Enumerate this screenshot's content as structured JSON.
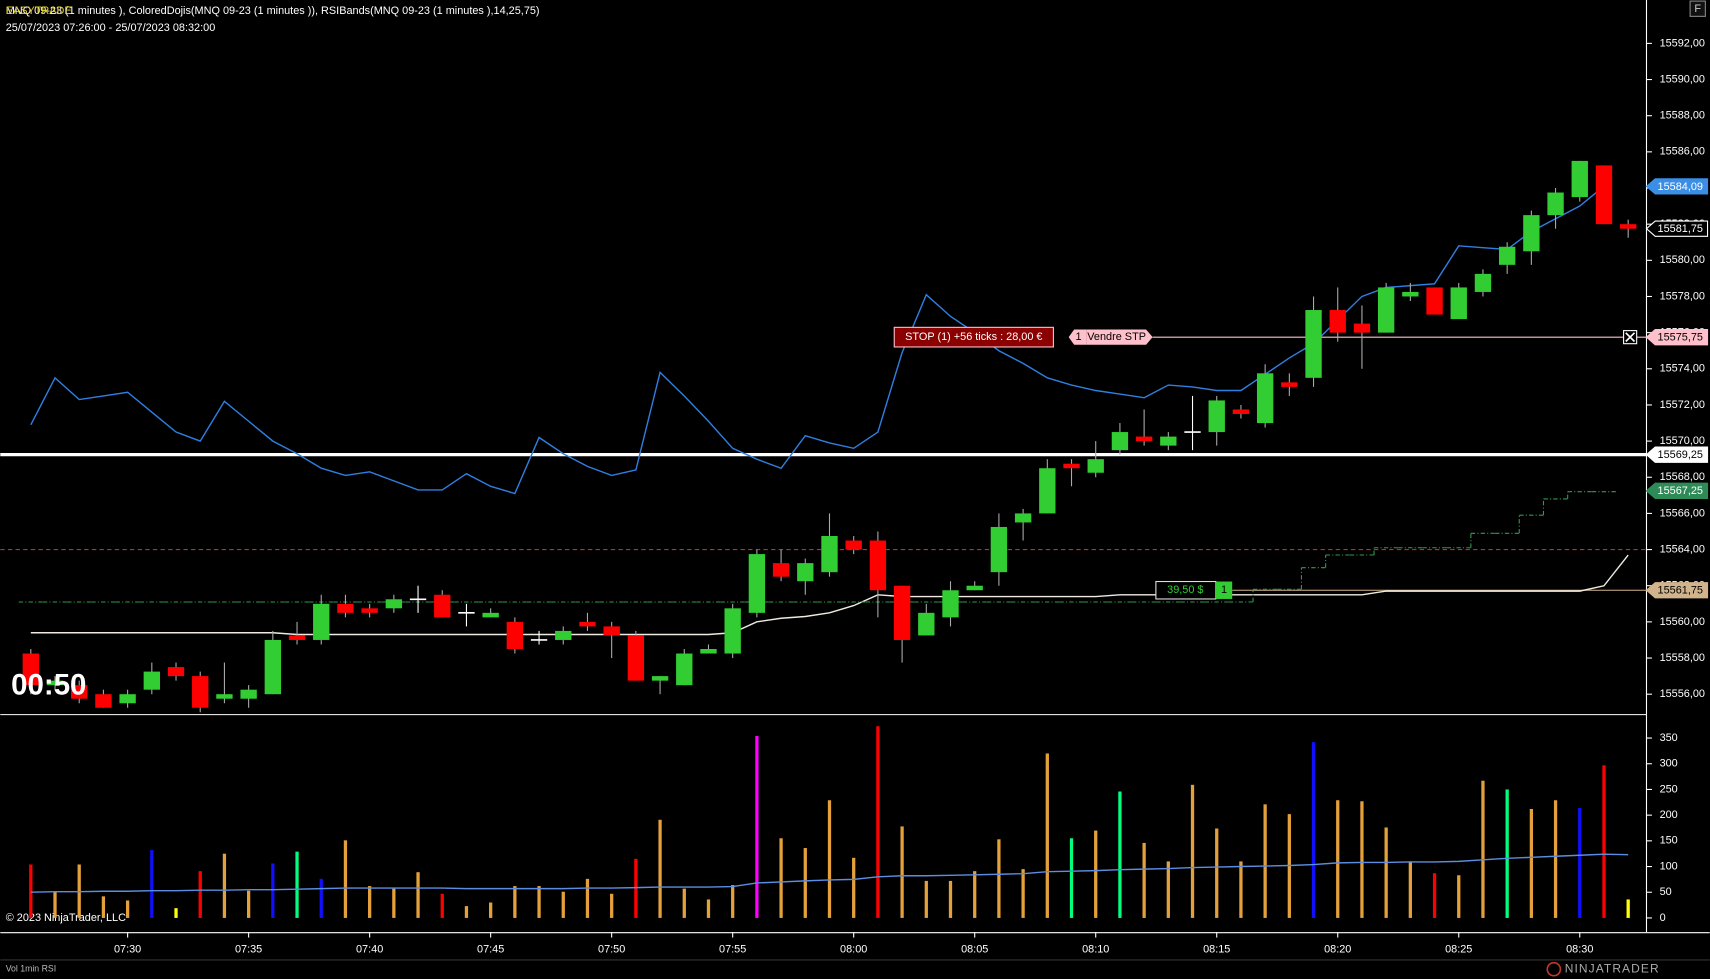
{
  "header": {
    "overlay_title": "EASYTRADE",
    "title": "MNQ 09-23 (1 minutes ), ColoredDojis(MNQ 09-23 (1 minutes )), RSIBands(MNQ 09-23 (1 minutes ),14,25,75)",
    "date_range": "25/07/2023 07:26:00 - 25/07/2023 08:32:00",
    "button": "F",
    "timer": "00:50"
  },
  "orders": {
    "stop_label": "STOP (1) +56 ticks : 28,00 €",
    "stop_qty": "1",
    "stop_action": "Vendre STP",
    "pnl_label": "39,50 $",
    "pnl_qty": "1"
  },
  "footer": {
    "copyright": "© 2023 NinjaTrader, LLC",
    "indicators": "Vol 1min RSI",
    "logo": "NINJATRADER"
  },
  "chart_data": [
    {
      "type": "candlestick",
      "categories": [
        null,
        null,
        null,
        null,
        "07:30",
        null,
        null,
        null,
        null,
        "07:35",
        null,
        null,
        null,
        null,
        "07:40",
        null,
        null,
        null,
        null,
        "07:45",
        null,
        null,
        null,
        null,
        "07:50",
        null,
        null,
        null,
        null,
        "07:55",
        null,
        null,
        null,
        null,
        "08:00",
        null,
        null,
        null,
        null,
        "08:05",
        null,
        null,
        null,
        null,
        "08:10",
        null,
        null,
        null,
        null,
        "08:15",
        null,
        null,
        null,
        null,
        "08:20",
        null,
        null,
        null,
        null,
        "08:25",
        null,
        null,
        null,
        null,
        "08:30",
        null,
        null
      ],
      "open": [
        15558.25,
        15556.5,
        15556.5,
        15556,
        15555.5,
        15556.25,
        15557.5,
        15557,
        15555.75,
        15555.75,
        15556,
        15559.25,
        15559,
        15561,
        15560.75,
        15560.75,
        15561.25,
        15561.5,
        15560.5,
        15560.25,
        15560,
        15559,
        15559,
        15560,
        15559.75,
        15559.25,
        15556.75,
        15556.5,
        15558.25,
        15558.25,
        15560.5,
        15563.25,
        15562.25,
        15562.75,
        15564.5,
        15564.5,
        15562,
        15559.25,
        15560.25,
        15561.75,
        15562.75,
        15565.5,
        15566,
        15568.75,
        15568.25,
        15569.5,
        15570.25,
        15569.75,
        15570.5,
        15570.5,
        15571.75,
        15571,
        15573.25,
        15573.5,
        15577.25,
        15576.5,
        15576,
        15578,
        15578.5,
        15576.75,
        15578.25,
        15579.75,
        15580.5,
        15582.5,
        15583.5,
        15585.25,
        15582
      ],
      "high": [
        15558.5,
        15557,
        15556.75,
        15556.25,
        15556.25,
        15557.75,
        15557.75,
        15557.25,
        15557.75,
        15556.5,
        15559.5,
        15560,
        15561.5,
        15561.5,
        15561,
        15561.5,
        15562,
        15561.75,
        15561,
        15560.75,
        15560.25,
        15559.5,
        15559.75,
        15560.5,
        15560,
        15559.5,
        15557,
        15558.5,
        15558.75,
        15561,
        15564,
        15564,
        15563.5,
        15566,
        15564.75,
        15565,
        15562,
        15561,
        15562.25,
        15562.25,
        15566,
        15566.25,
        15569,
        15569,
        15570,
        15571,
        15571.75,
        15570.5,
        15572.5,
        15572.5,
        15572,
        15574.25,
        15573.75,
        15578,
        15578.5,
        15577.5,
        15578.75,
        15578.75,
        15578.5,
        15578.75,
        15579.5,
        15581,
        15582.75,
        15584,
        15585.5,
        15585.25,
        15582.25
      ],
      "low": [
        15556,
        15556.25,
        15555.5,
        15555.25,
        15555.25,
        15556,
        15556.75,
        15555,
        15555.5,
        15555.25,
        15556,
        15558.75,
        15558.75,
        15560.25,
        15560.25,
        15560.5,
        15560.5,
        15560.25,
        15559.75,
        15560.25,
        15558.25,
        15558.75,
        15558.75,
        15559.5,
        15558,
        15556.75,
        15556,
        15556.5,
        15558.25,
        15558,
        15560.25,
        15562.25,
        15561.5,
        15562.5,
        15563.75,
        15560.25,
        15557.75,
        15559.25,
        15559.75,
        15561.75,
        15562,
        15564.5,
        15566,
        15567.5,
        15568,
        15569.25,
        15569.75,
        15569.5,
        15569.5,
        15569.75,
        15571.25,
        15570.75,
        15572.5,
        15573,
        15575.5,
        15574,
        15576,
        15577.75,
        15577,
        15576.75,
        15578,
        15579.25,
        15579.75,
        15581.75,
        15583.25,
        15582,
        15581.25
      ],
      "close": [
        15556.5,
        15556.75,
        15555.75,
        15555.25,
        15556,
        15557.25,
        15557,
        15555.25,
        15556,
        15556.25,
        15559,
        15559,
        15561,
        15560.5,
        15560.5,
        15561.25,
        15561.25,
        15560.25,
        15560.5,
        15560.5,
        15558.5,
        15559,
        15559.5,
        15559.75,
        15559.25,
        15556.75,
        15557,
        15558.25,
        15558.5,
        15560.75,
        15563.75,
        15562.5,
        15563.25,
        15564.75,
        15564,
        15561.75,
        15559,
        15560.5,
        15561.75,
        15562,
        15565.25,
        15566,
        15568.5,
        15568.5,
        15569,
        15570.5,
        15570,
        15570.25,
        15570.5,
        15572.25,
        15571.5,
        15573.75,
        15573,
        15577.25,
        15576,
        15576,
        15578.5,
        15578.25,
        15577,
        15578.5,
        15579.25,
        15580.75,
        15582.5,
        15583.75,
        15585.5,
        15582,
        15581.75
      ],
      "up_color": "#32cd32",
      "down_color": "#ff0000",
      "doji_color": "#ffffff",
      "series": [
        {
          "color": "#2f7fe0",
          "style": "solid",
          "values": [
            15570.9,
            15573.5,
            15572.3,
            15572.5,
            15572.7,
            15571.6,
            15570.5,
            15570.0,
            15572.2,
            15571.1,
            15570.0,
            15569.3,
            15568.5,
            15568.1,
            15568.3,
            15567.8,
            15567.3,
            15567.3,
            15568.2,
            15567.5,
            15567.1,
            15570.2,
            15569.3,
            15568.6,
            15568.1,
            15568.4,
            15573.8,
            15572.5,
            15571.1,
            15569.6,
            15569.0,
            15568.5,
            15570.3,
            15569.9,
            15569.6,
            15570.5,
            15574.9,
            15578.1,
            15576.9,
            15576.0,
            15575.0,
            15574.3,
            15573.5,
            15573.1,
            15572.8,
            15572.6,
            15572.4,
            15573.1,
            15573.0,
            15572.8,
            15572.8,
            15573.7,
            15574.6,
            15575.4,
            15576.7,
            15578.0,
            15578.5,
            15578.6,
            15578.7,
            15580.8,
            15580.7,
            15580.6,
            15581.6,
            15582.3,
            15583.0,
            15584.1,
            null
          ]
        },
        {
          "color": "#f0ebe0",
          "style": "solid",
          "values": [
            15559.4,
            15559.4,
            15559.4,
            15559.4,
            15559.4,
            15559.4,
            15559.4,
            15559.4,
            15559.4,
            15559.4,
            15559.4,
            15559.3,
            15559.3,
            15559.3,
            15559.3,
            15559.3,
            15559.3,
            15559.3,
            15559.3,
            15559.3,
            15559.3,
            15559.3,
            15559.3,
            15559.3,
            15559.3,
            15559.3,
            15559.3,
            15559.3,
            15559.3,
            15559.4,
            15560.0,
            15560.2,
            15560.3,
            15560.5,
            15560.9,
            15561.5,
            15561.4,
            15561.4,
            15561.4,
            15561.4,
            15561.4,
            15561.4,
            15561.4,
            15561.4,
            15561.4,
            15561.5,
            15561.5,
            15561.5,
            15561.5,
            15561.5,
            15561.5,
            15561.5,
            15561.5,
            15561.5,
            15561.5,
            15561.5,
            15561.7,
            15561.7,
            15561.7,
            15561.7,
            15561.7,
            15561.7,
            15561.7,
            15561.7,
            15561.7,
            15562.0,
            15563.7
          ]
        },
        {
          "color": "#2e9b4f",
          "style": "step",
          "values": [
            15561.1,
            15561.1,
            15561.1,
            15561.1,
            15561.1,
            15561.1,
            15561.1,
            15561.1,
            15561.1,
            15561.1,
            15561.1,
            15561.1,
            15561.1,
            15561.1,
            15561.1,
            15561.1,
            15561.1,
            15561.1,
            15561.1,
            15561.1,
            15561.1,
            15561.1,
            15561.1,
            15561.1,
            15561.1,
            15561.1,
            15561.1,
            15561.1,
            15561.1,
            15561.1,
            15561.1,
            15561.1,
            15561.1,
            15561.1,
            15561.1,
            15561.1,
            15561.1,
            15561.1,
            15561.1,
            15561.1,
            15561.1,
            15561.1,
            15561.1,
            15561.1,
            15561.1,
            15561.1,
            15561.1,
            15561.1,
            15561.1,
            15561.1,
            15561.1,
            15561.8,
            15561.8,
            15563.0,
            15563.7,
            15563.7,
            15564.1,
            15564.1,
            15564.1,
            15564.1,
            15564.9,
            15564.9,
            15565.9,
            15566.8,
            15567.2,
            15567.2,
            null
          ]
        }
      ],
      "hlines": [
        {
          "value": 15569.25,
          "color": "#ffffff",
          "width": 3,
          "style": "solid"
        },
        {
          "value": 15564,
          "color": "#e02020",
          "width": 1,
          "style": "dashed"
        },
        {
          "value": 15575.75,
          "color": "#ffc0cb",
          "width": 1,
          "style": "solid"
        },
        {
          "value": 15561.75,
          "color": "#d2b48c",
          "width": 1,
          "style": "solid"
        }
      ],
      "price_labels": [
        {
          "value": 15584.09,
          "label": "15584,09",
          "color": "#3a8ee6",
          "text_color": "#ffffff"
        },
        {
          "value": 15581.75,
          "label": "15581,75",
          "color": "#000000",
          "text_color": "#ffffff"
        },
        {
          "value": 15575.75,
          "label": "15575,75",
          "color": "#ffc0cb",
          "text_color": "#000000"
        },
        {
          "value": 15569.25,
          "label": "15569,25",
          "color": "#ffffff",
          "text_color": "#000000"
        },
        {
          "value": 15567.25,
          "label": "15567,25",
          "color": "#2e8b57",
          "text_color": "#ffffff"
        },
        {
          "value": 15561.75,
          "label": "15561,75",
          "color": "#d2b48c",
          "text_color": "#000000"
        }
      ],
      "ylim": [
        15554.9,
        15594.4
      ],
      "yticks": [
        {
          "value": 15556,
          "label": "15556,00"
        },
        {
          "value": 15558,
          "label": "15558,00"
        },
        {
          "value": 15560,
          "label": "15560,00"
        },
        {
          "value": 15562,
          "label": "15562,00"
        },
        {
          "value": 15564,
          "label": "15564,00"
        },
        {
          "value": 15566,
          "label": "15566,00"
        },
        {
          "value": 15568,
          "label": "15568,00"
        },
        {
          "value": 15570,
          "label": "15570,00"
        },
        {
          "value": 15572,
          "label": "15572,00"
        },
        {
          "value": 15574,
          "label": "15574,00"
        },
        {
          "value": 15576,
          "label": "15576,00"
        },
        {
          "value": 15578,
          "label": "15578,00"
        },
        {
          "value": 15580,
          "label": "15580,00"
        },
        {
          "value": 15582,
          "label": "15582,00"
        },
        {
          "value": 15584,
          "label": "15584,00"
        },
        {
          "value": 15586,
          "label": "15586,00"
        },
        {
          "value": 15588,
          "label": "15588,00"
        },
        {
          "value": 15590,
          "label": "15590,00"
        },
        {
          "value": 15592,
          "label": "15592,00"
        }
      ]
    },
    {
      "type": "bar",
      "values": [
        104,
        51,
        104,
        42,
        34,
        132,
        19,
        91,
        125,
        53,
        106,
        129,
        76,
        151,
        62,
        57,
        89,
        47,
        23,
        30,
        62,
        62,
        51,
        76,
        47,
        115,
        191,
        57,
        36,
        64,
        354,
        155,
        136,
        229,
        117,
        373,
        178,
        72,
        72,
        91,
        153,
        95,
        320,
        155,
        170,
        246,
        146,
        110,
        259,
        174,
        110,
        221,
        202,
        342,
        229,
        227,
        176,
        110,
        87,
        83,
        267,
        250,
        212,
        229,
        214,
        297,
        36
      ],
      "colors": [
        "#ff0000",
        "#e4a03a",
        "#e4a03a",
        "#e4a03a",
        "#e4a03a",
        "#1010ff",
        "#ffff00",
        "#ff0000",
        "#e4a03a",
        "#e4a03a",
        "#1010ff",
        "#00ff7f",
        "#1010ff",
        "#e4a03a",
        "#e4a03a",
        "#e4a03a",
        "#e4a03a",
        "#ff0000",
        "#e4a03a",
        "#e4a03a",
        "#e4a03a",
        "#e4a03a",
        "#e4a03a",
        "#e4a03a",
        "#e4a03a",
        "#ff0000",
        "#e4a03a",
        "#e4a03a",
        "#e4a03a",
        "#e4a03a",
        "#ff00ff",
        "#e4a03a",
        "#e4a03a",
        "#e4a03a",
        "#e4a03a",
        "#ff0000",
        "#e4a03a",
        "#e4a03a",
        "#e4a03a",
        "#e4a03a",
        "#e4a03a",
        "#e4a03a",
        "#e4a03a",
        "#00ff7f",
        "#e4a03a",
        "#00ff7f",
        "#e4a03a",
        "#e4a03a",
        "#e4a03a",
        "#e4a03a",
        "#e4a03a",
        "#e4a03a",
        "#e4a03a",
        "#1010ff",
        "#e4a03a",
        "#e4a03a",
        "#e4a03a",
        "#e4a03a",
        "#ff0000",
        "#e4a03a",
        "#e4a03a",
        "#00ff7f",
        "#e4a03a",
        "#e4a03a",
        "#1010ff",
        "#ff0000",
        "#ffff00"
      ],
      "series": [
        {
          "color": "#5b8de0",
          "style": "solid",
          "values": [
            50,
            51,
            51,
            52,
            52,
            53,
            53,
            54,
            54,
            55,
            55,
            56,
            57,
            58,
            58,
            58,
            58,
            58,
            57,
            57,
            57,
            57,
            57,
            58,
            58,
            59,
            60,
            60,
            60,
            61,
            68,
            70,
            72,
            74,
            75,
            80,
            82,
            82,
            83,
            84,
            85,
            86,
            90,
            91,
            92,
            94,
            95,
            96,
            98,
            99,
            100,
            101,
            102,
            104,
            107,
            108,
            108,
            109,
            109,
            110,
            113,
            116,
            118,
            120,
            122,
            124,
            123
          ]
        }
      ],
      "ylim": [
        -27.6,
        392.4
      ],
      "yticks": [
        0,
        50,
        100,
        150,
        200,
        250,
        300,
        350
      ]
    }
  ]
}
